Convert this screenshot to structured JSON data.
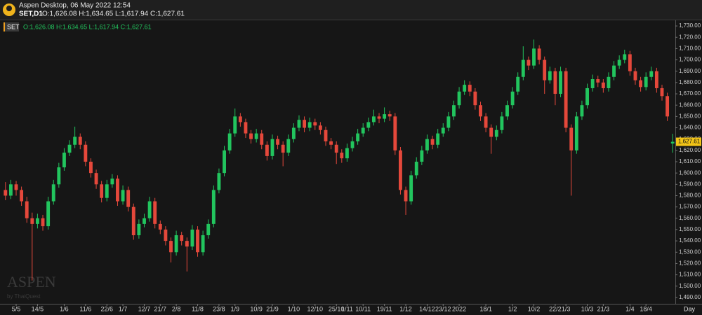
{
  "header": {
    "app_title": "Aspen Desktop, 06 May 2022 12:54",
    "symbol": "SET,D1",
    "ohlc_text": "O:1,626.08 H:1,634.65 L:1,617.94 C:1,627.61"
  },
  "legend": {
    "tag": "SET",
    "text": "O:1,626.08 H:1,634.65 L:1,617.94 C:1,627.61"
  },
  "watermark": {
    "brand": "ASPEN",
    "by": "by ThaiQuest"
  },
  "chart_data": {
    "type": "candlestick",
    "x_unit": "Day",
    "up_color": "#22c55e",
    "down_color": "#e5483b",
    "ylim": [
      1485,
      1735
    ],
    "yticks": [
      {
        "value": 1490,
        "label": "1,490.00"
      },
      {
        "value": 1500,
        "label": "1,500.00"
      },
      {
        "value": 1510,
        "label": "1,510.00"
      },
      {
        "value": 1520,
        "label": "1,520.00"
      },
      {
        "value": 1530,
        "label": "1,530.00"
      },
      {
        "value": 1540,
        "label": "1,540.00"
      },
      {
        "value": 1550,
        "label": "1,550.00"
      },
      {
        "value": 1560,
        "label": "1,560.00"
      },
      {
        "value": 1570,
        "label": "1,570.00"
      },
      {
        "value": 1580,
        "label": "1,580.00"
      },
      {
        "value": 1590,
        "label": "1,590.00"
      },
      {
        "value": 1600,
        "label": "1,600.00"
      },
      {
        "value": 1610,
        "label": "1,610.00"
      },
      {
        "value": 1620,
        "label": "1,620.00"
      },
      {
        "value": 1630,
        "label": "1,630.00"
      },
      {
        "value": 1640,
        "label": "1,640.00"
      },
      {
        "value": 1650,
        "label": "1,650.00"
      },
      {
        "value": 1660,
        "label": "1,660.00"
      },
      {
        "value": 1670,
        "label": "1,670.00"
      },
      {
        "value": 1680,
        "label": "1,680.00"
      },
      {
        "value": 1690,
        "label": "1,690.00"
      },
      {
        "value": 1700,
        "label": "1,700.00"
      },
      {
        "value": 1710,
        "label": "1,710.00"
      },
      {
        "value": 1720,
        "label": "1,720.00"
      },
      {
        "value": 1730,
        "label": "1,730.00"
      }
    ],
    "last_price": {
      "value": 1627.61,
      "label": "1,627.61"
    },
    "categories": [
      null,
      null,
      "5/5",
      null,
      null,
      null,
      "14/5",
      null,
      null,
      null,
      null,
      "1/6",
      null,
      null,
      null,
      "11/6",
      null,
      null,
      null,
      "22/6",
      null,
      null,
      "1/7",
      null,
      null,
      null,
      "12/7",
      null,
      null,
      "21/7",
      null,
      null,
      "2/8",
      null,
      null,
      null,
      "11/8",
      null,
      null,
      null,
      "23/8",
      null,
      null,
      "1/9",
      null,
      null,
      null,
      "10/9",
      null,
      null,
      "21/9",
      null,
      null,
      null,
      "1/10",
      null,
      null,
      null,
      "12/10",
      null,
      null,
      null,
      "25/10",
      null,
      "1/11",
      null,
      null,
      "10/11",
      null,
      null,
      null,
      "19/11",
      null,
      null,
      null,
      "1/12",
      null,
      null,
      null,
      "14/12",
      null,
      null,
      "23/12",
      null,
      null,
      "2022",
      null,
      null,
      null,
      null,
      "18/1",
      null,
      null,
      null,
      null,
      "1/2",
      null,
      null,
      null,
      "10/2",
      null,
      null,
      null,
      "22/2",
      null,
      "1/3",
      null,
      null,
      null,
      "10/3",
      null,
      null,
      "21/3",
      null,
      null,
      null,
      null,
      "1/4",
      null,
      null,
      "18/4",
      null,
      null,
      null,
      null,
      null
    ],
    "ohlc": [
      [
        1585,
        1592,
        1576,
        1580
      ],
      [
        1580,
        1594,
        1577,
        1590
      ],
      [
        1590,
        1593,
        1580,
        1585
      ],
      [
        1585,
        1588,
        1571,
        1575
      ],
      [
        1575,
        1579,
        1556,
        1560
      ],
      [
        1560,
        1565,
        1505,
        1555
      ],
      [
        1555,
        1564,
        1551,
        1560
      ],
      [
        1560,
        1563,
        1549,
        1553
      ],
      [
        1553,
        1579,
        1550,
        1575
      ],
      [
        1575,
        1594,
        1572,
        1590
      ],
      [
        1590,
        1609,
        1587,
        1605
      ],
      [
        1605,
        1622,
        1602,
        1618
      ],
      [
        1618,
        1629,
        1615,
        1625
      ],
      [
        1625,
        1641,
        1622,
        1632
      ],
      [
        1632,
        1635,
        1621,
        1625
      ],
      [
        1625,
        1628,
        1606,
        1610
      ],
      [
        1610,
        1613,
        1596,
        1600
      ],
      [
        1600,
        1603,
        1586,
        1590
      ],
      [
        1590,
        1593,
        1574,
        1578
      ],
      [
        1578,
        1594,
        1575,
        1590
      ],
      [
        1590,
        1599,
        1587,
        1595
      ],
      [
        1595,
        1598,
        1571,
        1575
      ],
      [
        1575,
        1589,
        1572,
        1585
      ],
      [
        1585,
        1588,
        1566,
        1570
      ],
      [
        1570,
        1573,
        1541,
        1545
      ],
      [
        1545,
        1559,
        1542,
        1555
      ],
      [
        1555,
        1564,
        1552,
        1560
      ],
      [
        1560,
        1579,
        1557,
        1575
      ],
      [
        1575,
        1578,
        1551,
        1555
      ],
      [
        1555,
        1558,
        1546,
        1550
      ],
      [
        1550,
        1553,
        1536,
        1540
      ],
      [
        1540,
        1543,
        1521,
        1530
      ],
      [
        1530,
        1549,
        1527,
        1545
      ],
      [
        1545,
        1548,
        1536,
        1540
      ],
      [
        1540,
        1543,
        1513,
        1535
      ],
      [
        1535,
        1554,
        1532,
        1550
      ],
      [
        1550,
        1553,
        1526,
        1530
      ],
      [
        1530,
        1549,
        1527,
        1545
      ],
      [
        1545,
        1559,
        1542,
        1555
      ],
      [
        1555,
        1589,
        1552,
        1585
      ],
      [
        1585,
        1604,
        1582,
        1600
      ],
      [
        1600,
        1624,
        1597,
        1620
      ],
      [
        1620,
        1639,
        1617,
        1635
      ],
      [
        1635,
        1657,
        1632,
        1650
      ],
      [
        1650,
        1653,
        1641,
        1645
      ],
      [
        1645,
        1648,
        1631,
        1635
      ],
      [
        1635,
        1638,
        1626,
        1630
      ],
      [
        1630,
        1639,
        1627,
        1635
      ],
      [
        1635,
        1638,
        1621,
        1625
      ],
      [
        1625,
        1628,
        1611,
        1615
      ],
      [
        1615,
        1634,
        1612,
        1630
      ],
      [
        1630,
        1633,
        1621,
        1625
      ],
      [
        1625,
        1628,
        1606,
        1618
      ],
      [
        1618,
        1634,
        1615,
        1630
      ],
      [
        1630,
        1644,
        1627,
        1640
      ],
      [
        1640,
        1651,
        1637,
        1647
      ],
      [
        1647,
        1650,
        1636,
        1640
      ],
      [
        1640,
        1649,
        1637,
        1645
      ],
      [
        1645,
        1648,
        1638,
        1642
      ],
      [
        1642,
        1645,
        1634,
        1638
      ],
      [
        1638,
        1641,
        1624,
        1628
      ],
      [
        1628,
        1631,
        1621,
        1625
      ],
      [
        1625,
        1628,
        1608,
        1618
      ],
      [
        1618,
        1621,
        1609,
        1613
      ],
      [
        1613,
        1626,
        1610,
        1622
      ],
      [
        1622,
        1632,
        1619,
        1628
      ],
      [
        1628,
        1639,
        1625,
        1635
      ],
      [
        1635,
        1644,
        1632,
        1640
      ],
      [
        1640,
        1649,
        1637,
        1645
      ],
      [
        1645,
        1656,
        1642,
        1650
      ],
      [
        1650,
        1653,
        1644,
        1648
      ],
      [
        1648,
        1658,
        1645,
        1652
      ],
      [
        1652,
        1655,
        1646,
        1650
      ],
      [
        1650,
        1653,
        1616,
        1620
      ],
      [
        1620,
        1623,
        1581,
        1585
      ],
      [
        1585,
        1588,
        1563,
        1575
      ],
      [
        1575,
        1602,
        1572,
        1598
      ],
      [
        1598,
        1614,
        1595,
        1610
      ],
      [
        1610,
        1624,
        1607,
        1620
      ],
      [
        1620,
        1634,
        1617,
        1630
      ],
      [
        1630,
        1633,
        1621,
        1625
      ],
      [
        1625,
        1639,
        1622,
        1635
      ],
      [
        1635,
        1644,
        1632,
        1640
      ],
      [
        1640,
        1654,
        1637,
        1650
      ],
      [
        1650,
        1664,
        1647,
        1660
      ],
      [
        1660,
        1676,
        1657,
        1672
      ],
      [
        1672,
        1682,
        1669,
        1678
      ],
      [
        1678,
        1681,
        1668,
        1672
      ],
      [
        1672,
        1675,
        1656,
        1660
      ],
      [
        1660,
        1663,
        1646,
        1650
      ],
      [
        1650,
        1653,
        1636,
        1640
      ],
      [
        1640,
        1643,
        1617,
        1632
      ],
      [
        1632,
        1642,
        1629,
        1638
      ],
      [
        1638,
        1654,
        1635,
        1650
      ],
      [
        1650,
        1664,
        1647,
        1660
      ],
      [
        1660,
        1676,
        1657,
        1672
      ],
      [
        1672,
        1689,
        1669,
        1685
      ],
      [
        1685,
        1712,
        1682,
        1700
      ],
      [
        1700,
        1703,
        1691,
        1695
      ],
      [
        1695,
        1718,
        1692,
        1710
      ],
      [
        1710,
        1713,
        1696,
        1700
      ],
      [
        1700,
        1703,
        1670,
        1682
      ],
      [
        1682,
        1694,
        1679,
        1690
      ],
      [
        1690,
        1693,
        1660,
        1670
      ],
      [
        1670,
        1694,
        1667,
        1690
      ],
      [
        1690,
        1693,
        1636,
        1640
      ],
      [
        1640,
        1643,
        1580,
        1620
      ],
      [
        1620,
        1654,
        1617,
        1650
      ],
      [
        1650,
        1664,
        1647,
        1660
      ],
      [
        1660,
        1679,
        1657,
        1675
      ],
      [
        1675,
        1687,
        1672,
        1683
      ],
      [
        1683,
        1686,
        1676,
        1680
      ],
      [
        1680,
        1683,
        1671,
        1675
      ],
      [
        1675,
        1689,
        1672,
        1685
      ],
      [
        1685,
        1699,
        1682,
        1695
      ],
      [
        1695,
        1704,
        1692,
        1700
      ],
      [
        1700,
        1709,
        1697,
        1705
      ],
      [
        1705,
        1708,
        1686,
        1690
      ],
      [
        1690,
        1693,
        1678,
        1682
      ],
      [
        1682,
        1685,
        1672,
        1676
      ],
      [
        1676,
        1689,
        1673,
        1685
      ],
      [
        1685,
        1694,
        1682,
        1690
      ],
      [
        1690,
        1693,
        1671,
        1675
      ],
      [
        1675,
        1678,
        1664,
        1668
      ],
      [
        1668,
        1671,
        1646,
        1650
      ],
      [
        1626.08,
        1634.65,
        1617.94,
        1627.61
      ]
    ]
  }
}
